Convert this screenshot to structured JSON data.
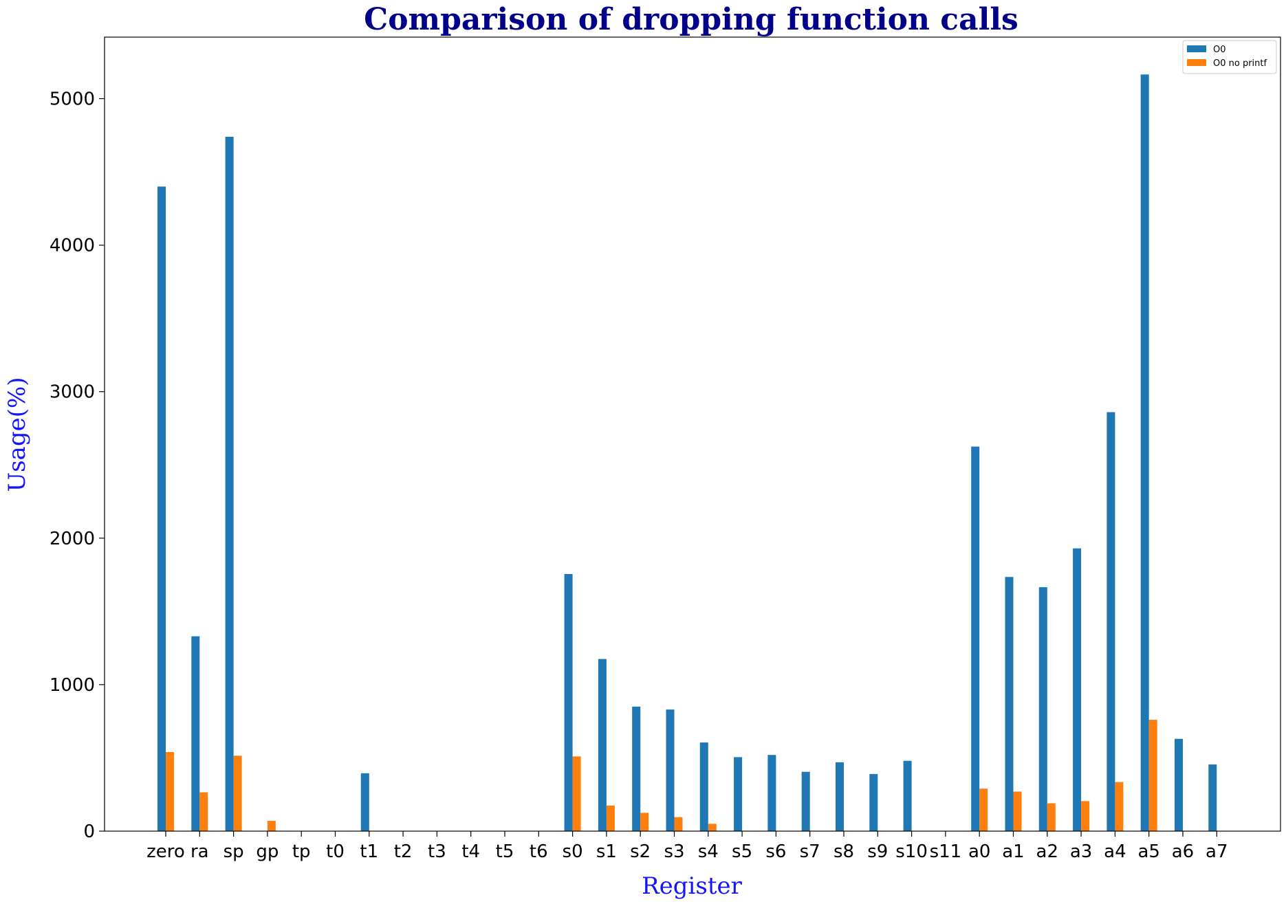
{
  "chart_data": {
    "type": "bar",
    "title": "Comparison of dropping function calls",
    "xlabel": "Register",
    "ylabel": "Usage(%)",
    "categories": [
      "zero",
      "ra",
      "sp",
      "gp",
      "tp",
      "t0",
      "t1",
      "t2",
      "t3",
      "t4",
      "t5",
      "t6",
      "s0",
      "s1",
      "s2",
      "s3",
      "s4",
      "s5",
      "s6",
      "s7",
      "s8",
      "s9",
      "s10",
      "s11",
      "a0",
      "a1",
      "a2",
      "a3",
      "a4",
      "a5",
      "a6",
      "a7"
    ],
    "series": [
      {
        "name": "O0",
        "color": "#1f77b4",
        "values": [
          4400,
          1330,
          4740,
          0,
          0,
          0,
          395,
          0,
          0,
          0,
          0,
          0,
          1755,
          1175,
          850,
          830,
          605,
          505,
          520,
          405,
          470,
          390,
          480,
          0,
          2625,
          1735,
          1665,
          1930,
          2860,
          5165,
          630,
          455
        ]
      },
      {
        "name": "O0 no printf",
        "color": "#ff7f0e",
        "values": [
          540,
          265,
          515,
          70,
          0,
          0,
          0,
          0,
          0,
          0,
          0,
          0,
          510,
          175,
          125,
          95,
          50,
          0,
          0,
          0,
          0,
          0,
          0,
          0,
          290,
          270,
          190,
          205,
          335,
          760,
          0,
          0
        ]
      }
    ],
    "yticks": [
      "0",
      "1000",
      "2000",
      "3000",
      "4000",
      "5000"
    ],
    "ylim": [
      0,
      5420
    ],
    "grid": false,
    "legend_position": "top-right"
  }
}
